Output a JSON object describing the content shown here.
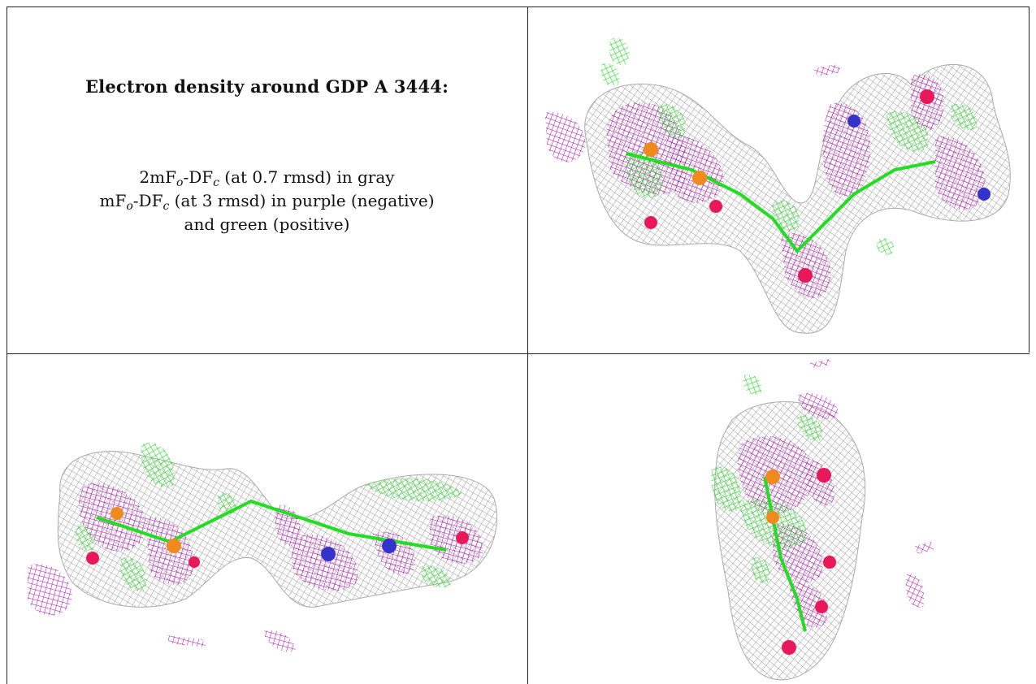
{
  "caption": {
    "heading": "Electron density around GDP A 3444:",
    "line1_a": "2mF",
    "line1_sub1": "o",
    "line1_b": "-DF",
    "line1_sub2": "c",
    "line1_c": " (at 0.7 rmsd) in gray",
    "line2_a": "mF",
    "line2_sub1": "o",
    "line2_b": "-DF",
    "line2_sub2": "c",
    "line2_c": " (at 3 rmsd) in purple (negative)",
    "line3": "and green (positive)"
  },
  "colors": {
    "mesh_2fofc": "#9a9a9a",
    "mesh_negative": "#b000b0",
    "mesh_positive": "#22dd22",
    "atom_oxygen": "#e8185a",
    "atom_phosphorus": "#f08a1c",
    "atom_nitrogen": "#3333cc",
    "border": "#222222"
  },
  "panels": [
    {
      "id": "top-right",
      "icon": "density-map-view-1"
    },
    {
      "id": "bottom-left",
      "icon": "density-map-view-2"
    },
    {
      "id": "bottom-right",
      "icon": "density-map-view-3"
    }
  ]
}
